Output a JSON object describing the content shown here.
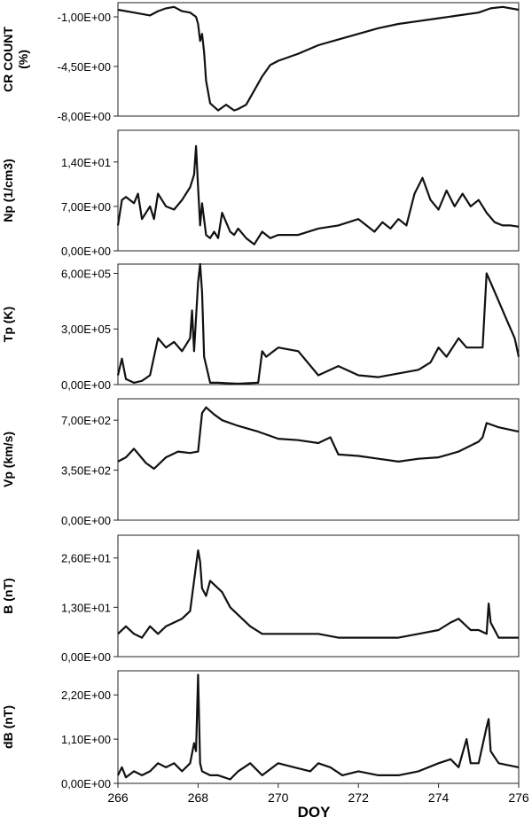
{
  "figure": {
    "xlabel": "DOY",
    "x_ticks": [
      "266",
      "268",
      "270",
      "272",
      "274",
      "276"
    ]
  },
  "chart_data": [
    {
      "type": "line",
      "ylabel_lines": [
        "CR COUNT",
        "(%)"
      ],
      "ylim": [
        -8,
        0
      ],
      "yticks": [
        {
          "value": -1,
          "label": "-1,00E+00"
        },
        {
          "value": -4.5,
          "label": "-4,50E+00"
        },
        {
          "value": -8,
          "label": "-8,00E+00"
        }
      ],
      "xlim": [
        266,
        276
      ],
      "x": [
        266.0,
        266.4,
        266.8,
        267.0,
        267.2,
        267.4,
        267.6,
        267.8,
        267.95,
        268.0,
        268.05,
        268.1,
        268.15,
        268.2,
        268.3,
        268.5,
        268.7,
        268.9,
        269.0,
        269.2,
        269.4,
        269.6,
        269.8,
        270.0,
        270.5,
        271.0,
        271.5,
        272.0,
        272.5,
        273.0,
        273.5,
        274.0,
        274.5,
        275.0,
        275.3,
        275.6,
        276.0
      ],
      "y": [
        -0.5,
        -0.7,
        -0.9,
        -0.6,
        -0.4,
        -0.3,
        -0.6,
        -0.7,
        -1.0,
        -1.5,
        -2.7,
        -2.2,
        -3.5,
        -5.5,
        -7.1,
        -7.6,
        -7.2,
        -7.6,
        -7.5,
        -7.2,
        -6.2,
        -5.2,
        -4.4,
        -4.1,
        -3.6,
        -3.0,
        -2.6,
        -2.2,
        -1.8,
        -1.5,
        -1.3,
        -1.1,
        -0.9,
        -0.7,
        -0.4,
        -0.3,
        -0.5
      ]
    },
    {
      "type": "line",
      "ylabel_lines": [
        "Np  (1/cm3)"
      ],
      "ylim": [
        0,
        19
      ],
      "yticks": [
        {
          "value": 0,
          "label": "0,00E+00"
        },
        {
          "value": 7,
          "label": "7,00E+00"
        },
        {
          "value": 14,
          "label": "1,40E+01"
        }
      ],
      "xlim": [
        266,
        276
      ],
      "x": [
        266.0,
        266.1,
        266.2,
        266.4,
        266.5,
        266.6,
        266.8,
        266.9,
        267.0,
        267.2,
        267.4,
        267.6,
        267.8,
        267.9,
        267.95,
        268.0,
        268.05,
        268.1,
        268.2,
        268.3,
        268.4,
        268.5,
        268.6,
        268.8,
        268.9,
        269.0,
        269.2,
        269.4,
        269.6,
        269.8,
        270.0,
        270.5,
        271.0,
        271.5,
        272.0,
        272.4,
        272.6,
        272.8,
        273.0,
        273.2,
        273.4,
        273.6,
        273.8,
        274.0,
        274.2,
        274.4,
        274.6,
        274.8,
        275.0,
        275.2,
        275.4,
        275.6,
        275.8,
        276.0
      ],
      "y": [
        4.0,
        8.0,
        8.5,
        7.5,
        9.0,
        5.0,
        7.0,
        5.0,
        9.0,
        7.0,
        6.5,
        8.0,
        10.0,
        12.0,
        16.5,
        10.0,
        4.0,
        7.5,
        2.5,
        2.0,
        3.0,
        2.0,
        6.0,
        3.0,
        2.5,
        3.5,
        2.0,
        1.0,
        3.0,
        2.0,
        2.5,
        2.5,
        3.5,
        4.0,
        5.0,
        3.0,
        4.5,
        3.5,
        5.0,
        4.0,
        9.0,
        11.5,
        8.0,
        6.5,
        9.5,
        7.0,
        9.0,
        7.0,
        8.0,
        6.0,
        4.5,
        4.0,
        4.0,
        3.8
      ]
    },
    {
      "type": "line",
      "ylabel_lines": [
        "Tp  (K)"
      ],
      "ylim": [
        0,
        650000
      ],
      "yticks": [
        {
          "value": 0,
          "label": "0,00E+00"
        },
        {
          "value": 300000,
          "label": "3,00E+05"
        },
        {
          "value": 600000,
          "label": "6,00E+05"
        }
      ],
      "xlim": [
        266,
        276
      ],
      "x": [
        266.0,
        266.1,
        266.2,
        266.4,
        266.6,
        266.8,
        267.0,
        267.2,
        267.4,
        267.6,
        267.8,
        267.85,
        267.9,
        268.0,
        268.05,
        268.1,
        268.15,
        268.3,
        268.5,
        269.0,
        269.5,
        269.6,
        269.7,
        270.0,
        270.5,
        271.0,
        271.3,
        271.5,
        272.0,
        272.5,
        273.0,
        273.5,
        273.8,
        274.0,
        274.2,
        274.5,
        274.7,
        275.0,
        275.1,
        275.2,
        275.3,
        275.5,
        275.7,
        275.9,
        276.0
      ],
      "y": [
        50000,
        140000,
        30000,
        10000,
        20000,
        50000,
        250000,
        200000,
        230000,
        180000,
        250000,
        400000,
        180000,
        550000,
        700000,
        500000,
        150000,
        10000,
        10000,
        5000,
        10000,
        180000,
        150000,
        200000,
        180000,
        50000,
        80000,
        100000,
        50000,
        40000,
        60000,
        80000,
        120000,
        200000,
        150000,
        250000,
        200000,
        200000,
        200000,
        600000,
        550000,
        450000,
        350000,
        250000,
        150000
      ]
    },
    {
      "type": "line",
      "ylabel_lines": [
        "Vp (km/s)"
      ],
      "ylim": [
        0,
        850
      ],
      "yticks": [
        {
          "value": 0,
          "label": "0,00E+00"
        },
        {
          "value": 350,
          "label": "3,50E+02"
        },
        {
          "value": 700,
          "label": "7,00E+02"
        }
      ],
      "xlim": [
        266,
        276
      ],
      "x": [
        266.0,
        266.2,
        266.4,
        266.7,
        266.9,
        267.2,
        267.5,
        267.8,
        268.0,
        268.1,
        268.2,
        268.4,
        268.6,
        269.0,
        269.5,
        270.0,
        270.5,
        271.0,
        271.3,
        271.5,
        272.0,
        272.5,
        273.0,
        273.5,
        274.0,
        274.5,
        275.0,
        275.1,
        275.2,
        275.5,
        276.0
      ],
      "y": [
        410,
        440,
        500,
        400,
        360,
        440,
        480,
        470,
        480,
        750,
        790,
        740,
        700,
        660,
        620,
        570,
        560,
        540,
        580,
        460,
        450,
        430,
        410,
        430,
        440,
        480,
        550,
        580,
        680,
        650,
        620
      ]
    },
    {
      "type": "line",
      "ylabel_lines": [
        "B   (nT)"
      ],
      "ylim": [
        0,
        32
      ],
      "yticks": [
        {
          "value": 0,
          "label": "0,00E+00"
        },
        {
          "value": 13,
          "label": "1,30E+01"
        },
        {
          "value": 26,
          "label": "2,60E+01"
        }
      ],
      "xlim": [
        266,
        276
      ],
      "x": [
        266.0,
        266.2,
        266.4,
        266.6,
        266.8,
        267.0,
        267.2,
        267.4,
        267.6,
        267.8,
        268.0,
        268.05,
        268.1,
        268.2,
        268.3,
        268.4,
        268.6,
        268.8,
        269.0,
        269.3,
        269.6,
        270.0,
        270.5,
        271.0,
        271.5,
        272.0,
        272.5,
        273.0,
        273.5,
        274.0,
        274.3,
        274.5,
        274.8,
        275.0,
        275.2,
        275.25,
        275.3,
        275.5,
        276.0
      ],
      "y": [
        6,
        8,
        6,
        5,
        8,
        6,
        8,
        9,
        10,
        12,
        28,
        25,
        18,
        16,
        20,
        19,
        17,
        13,
        11,
        8,
        6,
        6,
        6,
        6,
        5,
        5,
        5,
        5,
        6,
        7,
        9,
        10,
        7,
        7,
        6,
        14,
        9,
        5,
        5
      ]
    },
    {
      "type": "line",
      "ylabel_lines": [
        "dB  (nT)"
      ],
      "ylim": [
        0,
        2.8
      ],
      "yticks": [
        {
          "value": 0,
          "label": "0,00E+00"
        },
        {
          "value": 1.1,
          "label": "1,10E+00"
        },
        {
          "value": 2.2,
          "label": "2,20E+00"
        }
      ],
      "xlim": [
        266,
        276
      ],
      "x": [
        266.0,
        266.1,
        266.2,
        266.4,
        266.6,
        266.8,
        267.0,
        267.2,
        267.4,
        267.6,
        267.8,
        267.9,
        267.95,
        268.0,
        268.05,
        268.1,
        268.3,
        268.5,
        268.8,
        269.0,
        269.3,
        269.6,
        270.0,
        270.4,
        270.8,
        271.0,
        271.3,
        271.6,
        272.0,
        272.5,
        273.0,
        273.5,
        274.0,
        274.3,
        274.5,
        274.7,
        274.8,
        275.0,
        275.2,
        275.25,
        275.3,
        275.5,
        276.0
      ],
      "y": [
        0.2,
        0.4,
        0.15,
        0.3,
        0.2,
        0.3,
        0.5,
        0.4,
        0.5,
        0.3,
        0.5,
        1.0,
        0.8,
        2.7,
        0.5,
        0.3,
        0.2,
        0.2,
        0.1,
        0.3,
        0.5,
        0.2,
        0.5,
        0.4,
        0.3,
        0.5,
        0.4,
        0.2,
        0.3,
        0.2,
        0.2,
        0.3,
        0.5,
        0.6,
        0.4,
        1.1,
        0.5,
        0.5,
        1.4,
        1.6,
        0.8,
        0.5,
        0.4
      ]
    }
  ]
}
